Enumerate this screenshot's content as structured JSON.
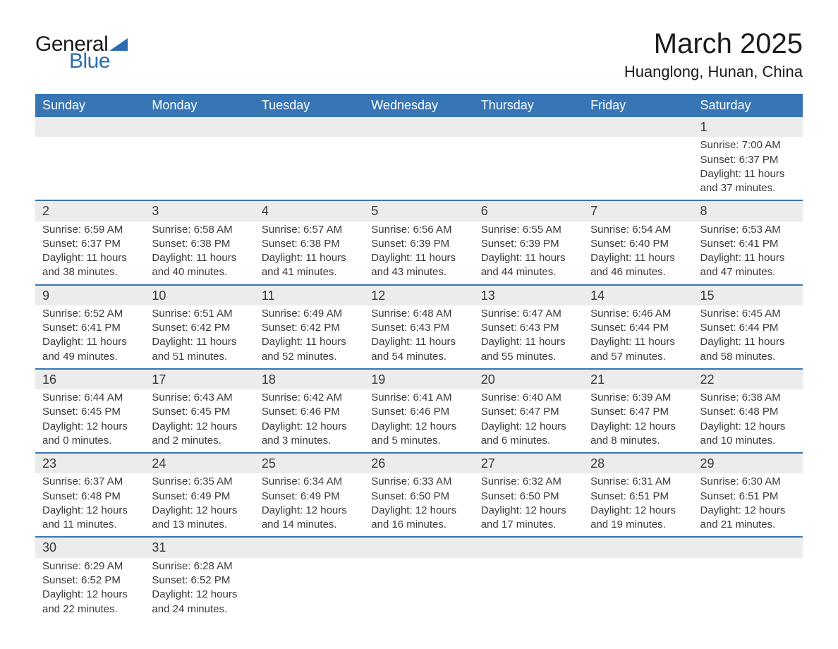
{
  "logo": {
    "word1": "General",
    "word2": "Blue",
    "accent_color": "#2d6cb0"
  },
  "title": "March 2025",
  "location": "Huanglong, Hunan, China",
  "colors": {
    "header_bg": "#3775b5",
    "header_text": "#ffffff",
    "row_stripe": "#ececec",
    "row_border": "#3775b5",
    "body_text": "#3a3a3a",
    "page_bg": "#ffffff"
  },
  "fonts": {
    "title_size_pt": 30,
    "location_size_pt": 17,
    "day_header_size_pt": 14,
    "day_num_size_pt": 14,
    "body_size_pt": 11
  },
  "layout": {
    "columns": 7,
    "start_day_index": 6,
    "days_in_month": 31
  },
  "day_headers": [
    "Sunday",
    "Monday",
    "Tuesday",
    "Wednesday",
    "Thursday",
    "Friday",
    "Saturday"
  ],
  "weeks": [
    [
      null,
      null,
      null,
      null,
      null,
      null,
      {
        "n": "1",
        "sunrise": "Sunrise: 7:00 AM",
        "sunset": "Sunset: 6:37 PM",
        "d1": "Daylight: 11 hours",
        "d2": "and 37 minutes."
      }
    ],
    [
      {
        "n": "2",
        "sunrise": "Sunrise: 6:59 AM",
        "sunset": "Sunset: 6:37 PM",
        "d1": "Daylight: 11 hours",
        "d2": "and 38 minutes."
      },
      {
        "n": "3",
        "sunrise": "Sunrise: 6:58 AM",
        "sunset": "Sunset: 6:38 PM",
        "d1": "Daylight: 11 hours",
        "d2": "and 40 minutes."
      },
      {
        "n": "4",
        "sunrise": "Sunrise: 6:57 AM",
        "sunset": "Sunset: 6:38 PM",
        "d1": "Daylight: 11 hours",
        "d2": "and 41 minutes."
      },
      {
        "n": "5",
        "sunrise": "Sunrise: 6:56 AM",
        "sunset": "Sunset: 6:39 PM",
        "d1": "Daylight: 11 hours",
        "d2": "and 43 minutes."
      },
      {
        "n": "6",
        "sunrise": "Sunrise: 6:55 AM",
        "sunset": "Sunset: 6:39 PM",
        "d1": "Daylight: 11 hours",
        "d2": "and 44 minutes."
      },
      {
        "n": "7",
        "sunrise": "Sunrise: 6:54 AM",
        "sunset": "Sunset: 6:40 PM",
        "d1": "Daylight: 11 hours",
        "d2": "and 46 minutes."
      },
      {
        "n": "8",
        "sunrise": "Sunrise: 6:53 AM",
        "sunset": "Sunset: 6:41 PM",
        "d1": "Daylight: 11 hours",
        "d2": "and 47 minutes."
      }
    ],
    [
      {
        "n": "9",
        "sunrise": "Sunrise: 6:52 AM",
        "sunset": "Sunset: 6:41 PM",
        "d1": "Daylight: 11 hours",
        "d2": "and 49 minutes."
      },
      {
        "n": "10",
        "sunrise": "Sunrise: 6:51 AM",
        "sunset": "Sunset: 6:42 PM",
        "d1": "Daylight: 11 hours",
        "d2": "and 51 minutes."
      },
      {
        "n": "11",
        "sunrise": "Sunrise: 6:49 AM",
        "sunset": "Sunset: 6:42 PM",
        "d1": "Daylight: 11 hours",
        "d2": "and 52 minutes."
      },
      {
        "n": "12",
        "sunrise": "Sunrise: 6:48 AM",
        "sunset": "Sunset: 6:43 PM",
        "d1": "Daylight: 11 hours",
        "d2": "and 54 minutes."
      },
      {
        "n": "13",
        "sunrise": "Sunrise: 6:47 AM",
        "sunset": "Sunset: 6:43 PM",
        "d1": "Daylight: 11 hours",
        "d2": "and 55 minutes."
      },
      {
        "n": "14",
        "sunrise": "Sunrise: 6:46 AM",
        "sunset": "Sunset: 6:44 PM",
        "d1": "Daylight: 11 hours",
        "d2": "and 57 minutes."
      },
      {
        "n": "15",
        "sunrise": "Sunrise: 6:45 AM",
        "sunset": "Sunset: 6:44 PM",
        "d1": "Daylight: 11 hours",
        "d2": "and 58 minutes."
      }
    ],
    [
      {
        "n": "16",
        "sunrise": "Sunrise: 6:44 AM",
        "sunset": "Sunset: 6:45 PM",
        "d1": "Daylight: 12 hours",
        "d2": "and 0 minutes."
      },
      {
        "n": "17",
        "sunrise": "Sunrise: 6:43 AM",
        "sunset": "Sunset: 6:45 PM",
        "d1": "Daylight: 12 hours",
        "d2": "and 2 minutes."
      },
      {
        "n": "18",
        "sunrise": "Sunrise: 6:42 AM",
        "sunset": "Sunset: 6:46 PM",
        "d1": "Daylight: 12 hours",
        "d2": "and 3 minutes."
      },
      {
        "n": "19",
        "sunrise": "Sunrise: 6:41 AM",
        "sunset": "Sunset: 6:46 PM",
        "d1": "Daylight: 12 hours",
        "d2": "and 5 minutes."
      },
      {
        "n": "20",
        "sunrise": "Sunrise: 6:40 AM",
        "sunset": "Sunset: 6:47 PM",
        "d1": "Daylight: 12 hours",
        "d2": "and 6 minutes."
      },
      {
        "n": "21",
        "sunrise": "Sunrise: 6:39 AM",
        "sunset": "Sunset: 6:47 PM",
        "d1": "Daylight: 12 hours",
        "d2": "and 8 minutes."
      },
      {
        "n": "22",
        "sunrise": "Sunrise: 6:38 AM",
        "sunset": "Sunset: 6:48 PM",
        "d1": "Daylight: 12 hours",
        "d2": "and 10 minutes."
      }
    ],
    [
      {
        "n": "23",
        "sunrise": "Sunrise: 6:37 AM",
        "sunset": "Sunset: 6:48 PM",
        "d1": "Daylight: 12 hours",
        "d2": "and 11 minutes."
      },
      {
        "n": "24",
        "sunrise": "Sunrise: 6:35 AM",
        "sunset": "Sunset: 6:49 PM",
        "d1": "Daylight: 12 hours",
        "d2": "and 13 minutes."
      },
      {
        "n": "25",
        "sunrise": "Sunrise: 6:34 AM",
        "sunset": "Sunset: 6:49 PM",
        "d1": "Daylight: 12 hours",
        "d2": "and 14 minutes."
      },
      {
        "n": "26",
        "sunrise": "Sunrise: 6:33 AM",
        "sunset": "Sunset: 6:50 PM",
        "d1": "Daylight: 12 hours",
        "d2": "and 16 minutes."
      },
      {
        "n": "27",
        "sunrise": "Sunrise: 6:32 AM",
        "sunset": "Sunset: 6:50 PM",
        "d1": "Daylight: 12 hours",
        "d2": "and 17 minutes."
      },
      {
        "n": "28",
        "sunrise": "Sunrise: 6:31 AM",
        "sunset": "Sunset: 6:51 PM",
        "d1": "Daylight: 12 hours",
        "d2": "and 19 minutes."
      },
      {
        "n": "29",
        "sunrise": "Sunrise: 6:30 AM",
        "sunset": "Sunset: 6:51 PM",
        "d1": "Daylight: 12 hours",
        "d2": "and 21 minutes."
      }
    ],
    [
      {
        "n": "30",
        "sunrise": "Sunrise: 6:29 AM",
        "sunset": "Sunset: 6:52 PM",
        "d1": "Daylight: 12 hours",
        "d2": "and 22 minutes."
      },
      {
        "n": "31",
        "sunrise": "Sunrise: 6:28 AM",
        "sunset": "Sunset: 6:52 PM",
        "d1": "Daylight: 12 hours",
        "d2": "and 24 minutes."
      },
      null,
      null,
      null,
      null,
      null
    ]
  ]
}
